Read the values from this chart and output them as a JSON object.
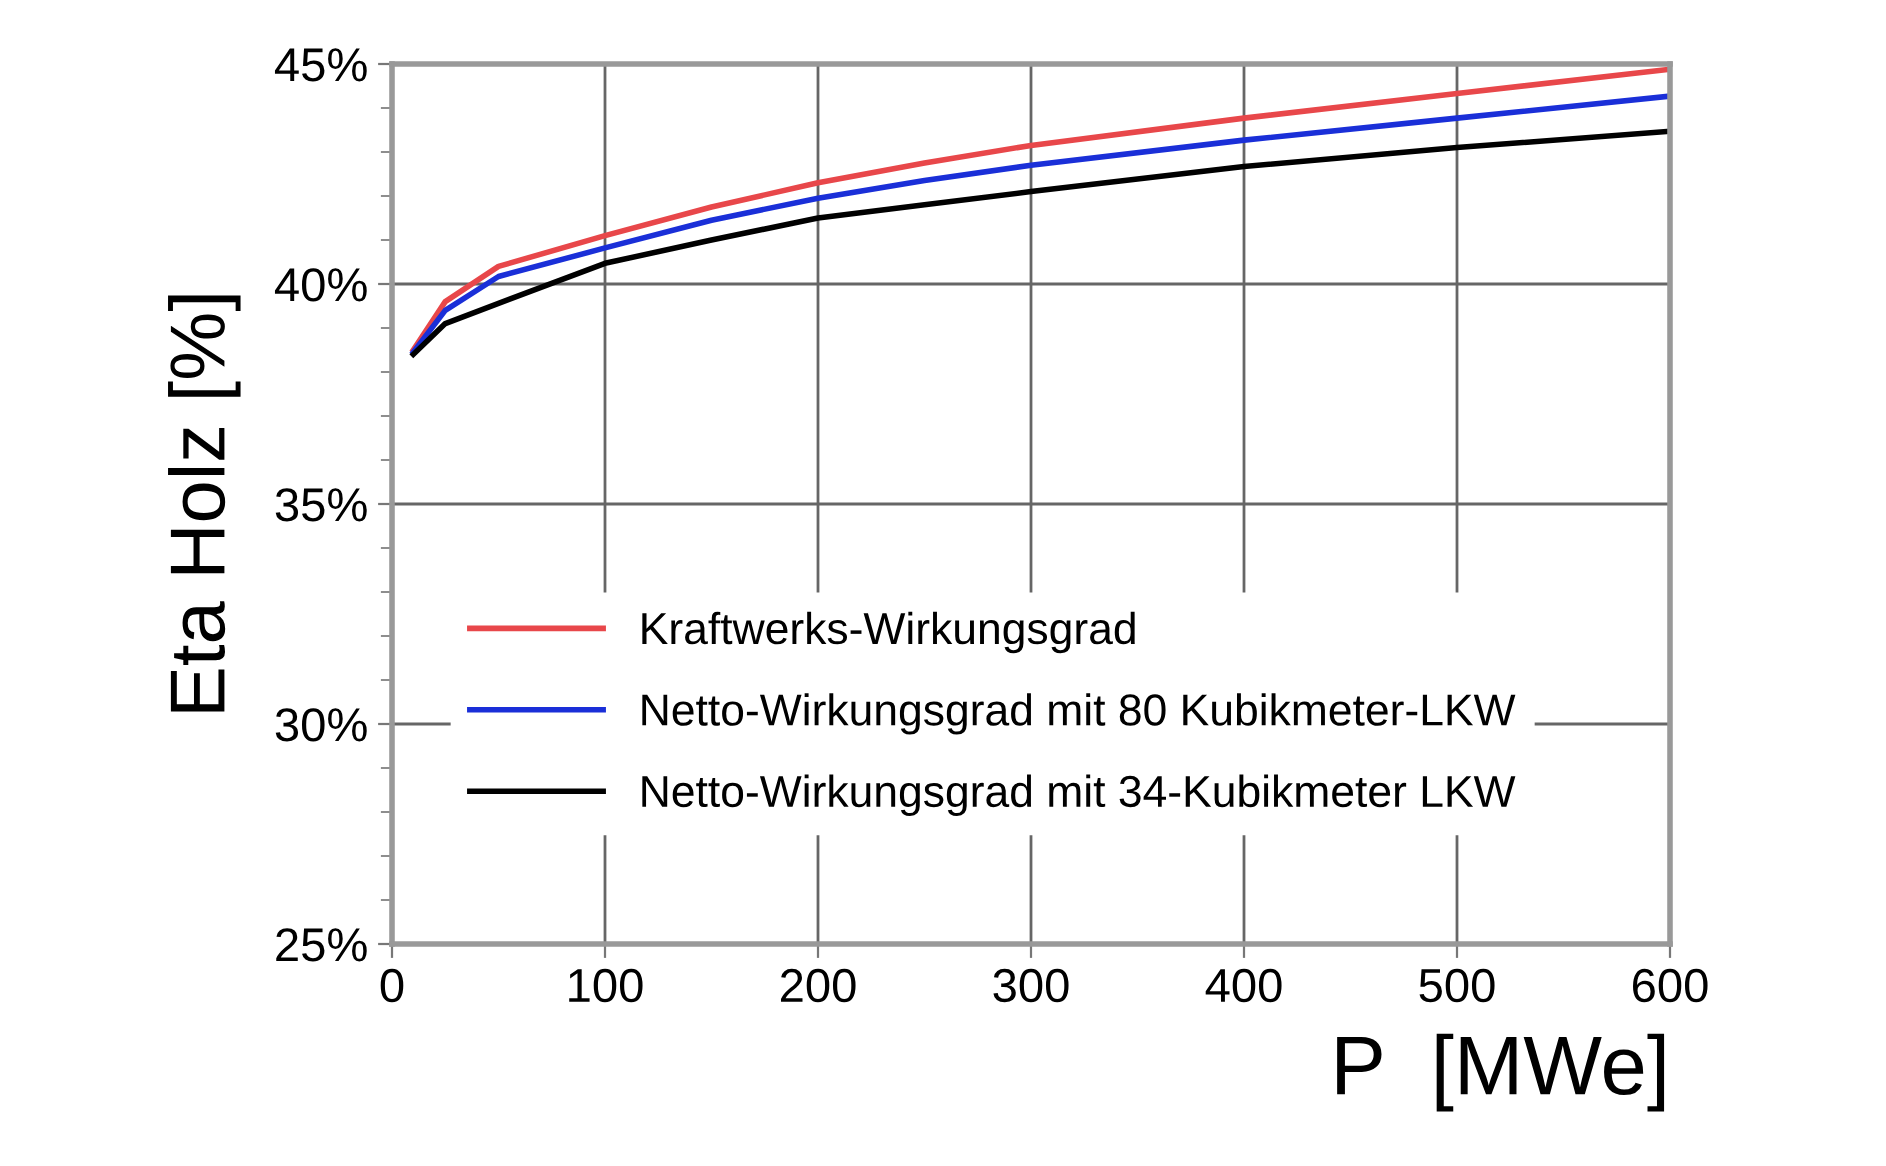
{
  "chart_data": {
    "type": "line",
    "xlabel": "P  [MWe]",
    "ylabel": "Eta Holz [%]",
    "x": [
      10,
      25,
      50,
      100,
      150,
      200,
      250,
      300,
      400,
      500,
      600
    ],
    "series": [
      {
        "name": "Kraftwerks-Wirkungsgrad",
        "color": "#e8474a",
        "values": [
          38.5,
          39.6,
          40.4,
          41.1,
          41.75,
          42.3,
          42.75,
          43.15,
          43.77,
          44.33,
          44.88
        ]
      },
      {
        "name": "Netto-Wirkungsgrad mit 80 Kubikmeter-LKW",
        "color": "#1a2fd8",
        "values": [
          38.45,
          39.4,
          40.17,
          40.82,
          41.45,
          41.95,
          42.35,
          42.7,
          43.27,
          43.77,
          44.27
        ]
      },
      {
        "name": "Netto-Wirkungsgrad mit 34-Kubikmeter LKW",
        "color": "#000000",
        "values": [
          38.4,
          39.1,
          39.56,
          40.47,
          41.0,
          41.5,
          41.8,
          42.1,
          42.67,
          43.1,
          43.47
        ]
      }
    ],
    "xlim": [
      0,
      600
    ],
    "xticks": [
      0,
      100,
      200,
      300,
      400,
      500,
      600
    ],
    "ylim": [
      25,
      45
    ],
    "yticks": [
      {
        "value": 25,
        "label": "25%"
      },
      {
        "value": 30,
        "label": "30%"
      },
      {
        "value": 35,
        "label": "35%"
      },
      {
        "value": 40,
        "label": "40%"
      },
      {
        "value": 45,
        "label": "45%"
      }
    ],
    "grid": true,
    "legend": "bottom",
    "marker": "none",
    "line_style": "solid"
  }
}
